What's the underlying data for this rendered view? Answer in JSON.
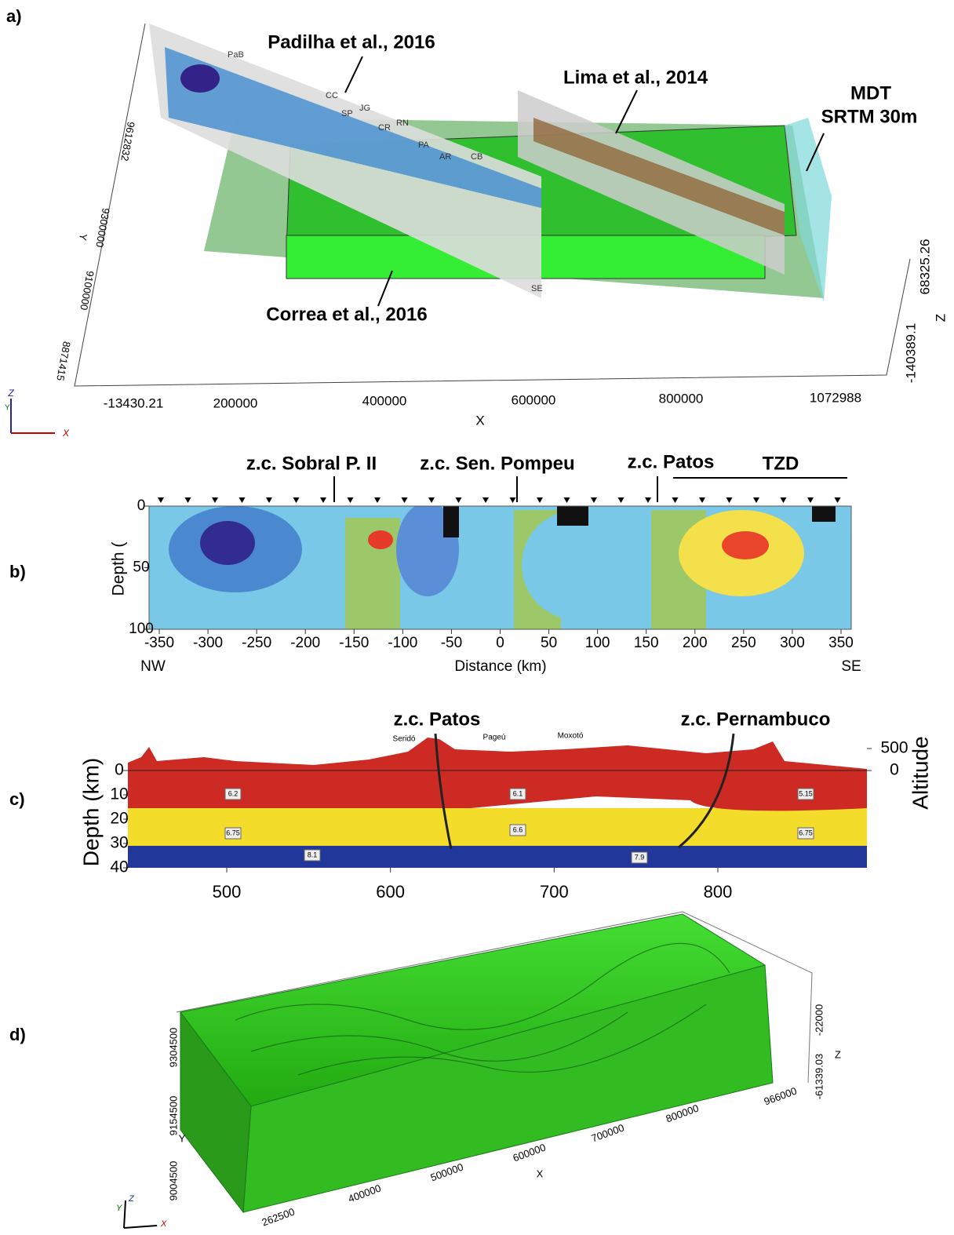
{
  "panels": {
    "a": {
      "label": "a)",
      "annotations": [
        "Padilha et al., 2016",
        "Lima et al., 2014",
        "MDT",
        "SRTM 30m",
        "Correa et al., 2016"
      ],
      "x_axis": {
        "ticks": [
          -13430.21,
          200000,
          400000,
          600000,
          800000,
          1072988
        ],
        "title": "X"
      },
      "y_axis": {
        "ticks": [
          9612832,
          9300000,
          9100000,
          8871415
        ],
        "title": "Y"
      },
      "z_axis": {
        "ticks": [
          68325.26,
          -140389.1
        ],
        "title": "Z"
      },
      "triad": [
        "Z",
        "Y",
        "X"
      ],
      "profile_labels": [
        "PaB",
        "CC",
        "SP",
        "JG",
        "CR",
        "RN",
        "PA",
        "AR",
        "CB",
        "SE"
      ]
    },
    "b": {
      "label": "b)",
      "annotations": [
        "z.c. Sobral P. II",
        "z.c. Sen. Pompeu",
        "z.c. Patos",
        "TZD"
      ],
      "y_title": "Depth (",
      "yticks": [
        0,
        50,
        100
      ],
      "xticks": [
        -350,
        -300,
        -250,
        -200,
        -150,
        -100,
        -50,
        0,
        50,
        100,
        150,
        200,
        250,
        300,
        350
      ],
      "x_title": "Distance (km)",
      "left_end": "NW",
      "right_end": "SE"
    },
    "c": {
      "label": "c)",
      "annotations": [
        "z.c. Patos",
        "z.c. Pernambuco"
      ],
      "y_title": "Depth (km)",
      "yticks": [
        0,
        10,
        20,
        30,
        40
      ],
      "xticks": [
        500,
        600,
        700,
        800
      ],
      "y2_title": "Altitude",
      "y2ticks": [
        500,
        0
      ],
      "surface_labels": [
        "Seridó",
        "Pageú",
        "Moxotó"
      ],
      "layer_values": [
        6.2,
        6.75,
        8.1,
        6.1,
        6.6,
        7.9,
        5.15,
        6.75
      ]
    },
    "d": {
      "label": "d)",
      "x_axis": {
        "ticks": [
          262500,
          400000,
          500000,
          600000,
          700000,
          800000,
          966000
        ],
        "title": "X"
      },
      "y_axis": {
        "ticks": [
          9304500,
          9154500,
          9004500
        ],
        "title": "Y"
      },
      "z_axis": {
        "ticks": [
          -22000,
          -61339.03
        ],
        "title": "Z"
      },
      "triad": [
        "Y",
        "Z",
        "X"
      ]
    }
  }
}
